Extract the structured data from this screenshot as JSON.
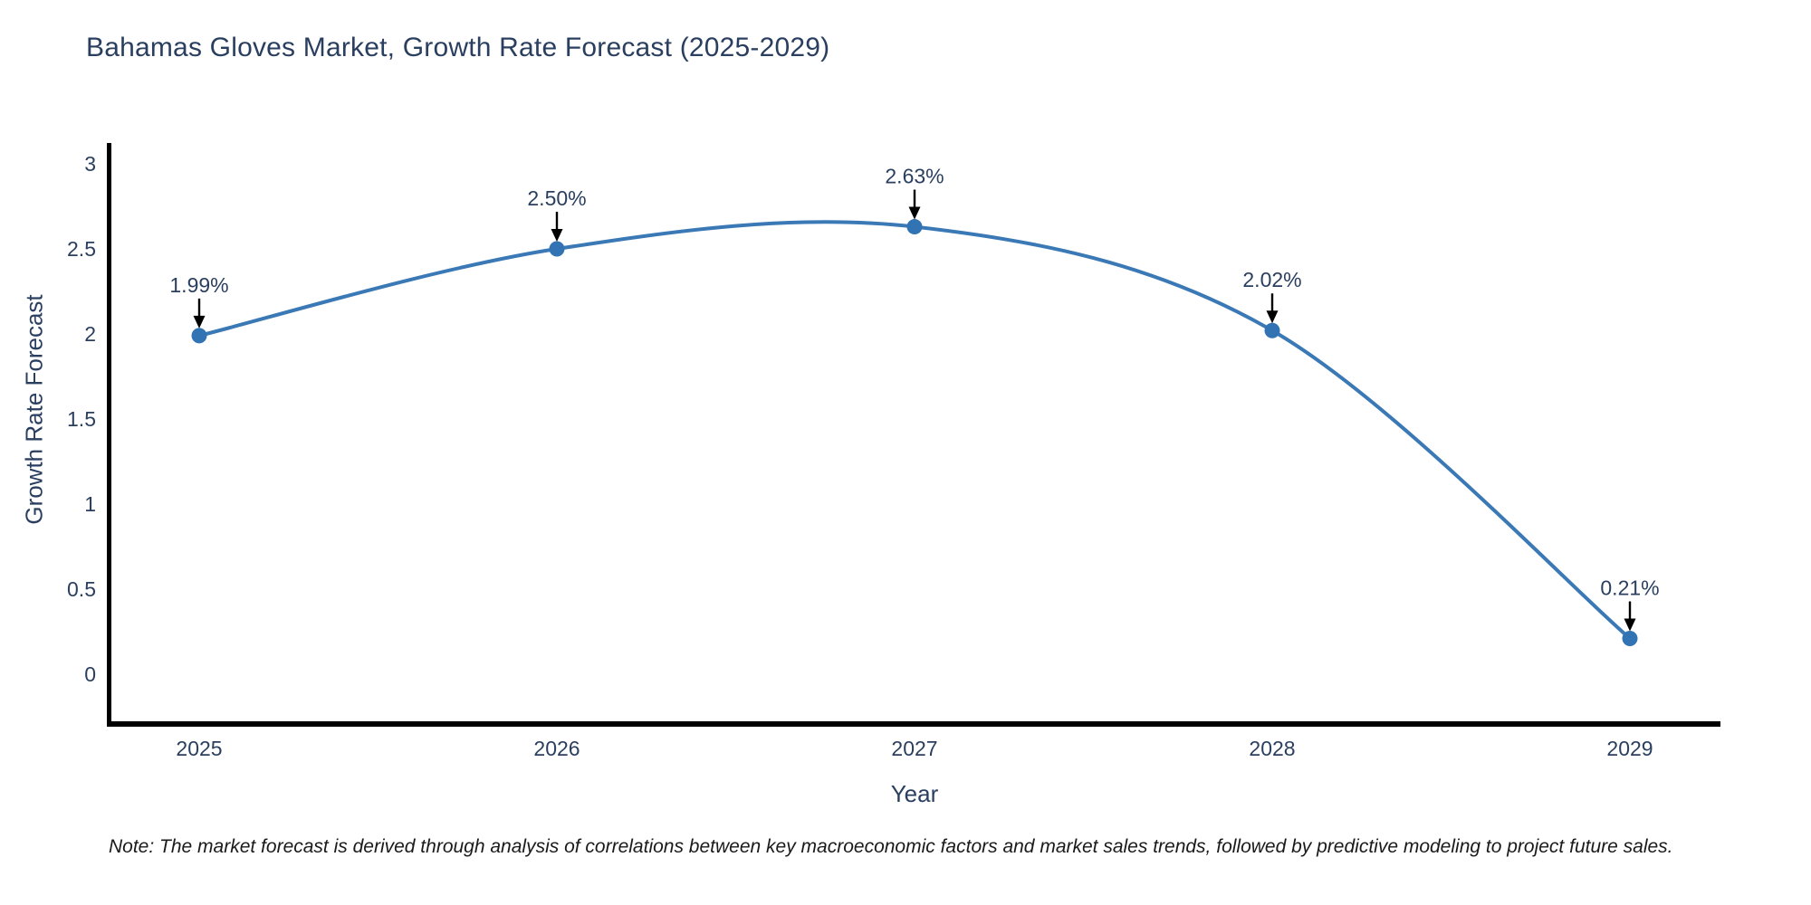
{
  "chart_data": {
    "type": "line",
    "title": "Bahamas Gloves Market, Growth Rate Forecast (2025-2029)",
    "xlabel": "Year",
    "ylabel": "Growth Rate Forecast",
    "categories": [
      "2025",
      "2026",
      "2027",
      "2028",
      "2029"
    ],
    "series": [
      {
        "name": "Growth Rate Forecast",
        "values": [
          1.99,
          2.5,
          2.63,
          2.02,
          0.21
        ]
      }
    ],
    "point_labels": [
      "1.99%",
      "2.50%",
      "2.63%",
      "2.02%",
      "0.21%"
    ],
    "ylim": [
      0,
      3
    ],
    "yticks": [
      0,
      0.5,
      1,
      1.5,
      2,
      2.5,
      3
    ],
    "ytick_labels": [
      "0",
      "0.5",
      "1",
      "1.5",
      "2",
      "2.5",
      "3"
    ],
    "grid": false,
    "legend": "none",
    "line_shape": "spline",
    "annotation_style": "value label with downward black arrow to each marker",
    "colors": {
      "line": "#3a79b5",
      "marker": "#3273b3",
      "axis": "#000000",
      "text": "#2a3f5f",
      "annotation_text": "#2a3f5f",
      "annotation_arrow": "#000000",
      "background": "#ffffff"
    }
  },
  "note": {
    "text": "Note: The market forecast is derived through analysis of correlations between key macroeconomic factors and market sales trends, followed by predictive modeling to project future sales."
  }
}
